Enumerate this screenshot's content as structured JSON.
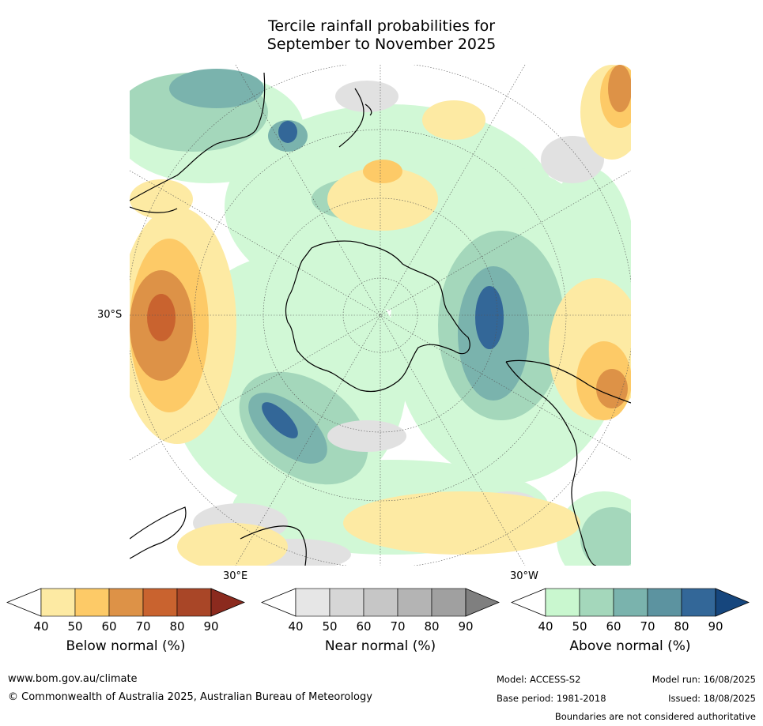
{
  "title": {
    "line1": "Tercile rainfall probabilities for",
    "line2": "September to November 2025"
  },
  "map": {
    "projection": "south-polar-stereographic",
    "labels": {
      "lat_30s": "30°S",
      "lon_30e": "30°E",
      "lon_30w": "30°W"
    }
  },
  "colorbars": [
    {
      "label": "Below normal (%)",
      "ticks": [
        "40",
        "50",
        "60",
        "70",
        "80",
        "90"
      ],
      "colors": [
        "#ffffff",
        "#fdeaa3",
        "#fdca67",
        "#dd9247",
        "#c9632f",
        "#a94627",
        "#8b2a1e"
      ]
    },
    {
      "label": "Near normal (%)",
      "ticks": [
        "40",
        "50",
        "60",
        "70",
        "80",
        "90"
      ],
      "colors": [
        "#ffffff",
        "#e6e6e6",
        "#d6d6d6",
        "#c6c6c6",
        "#b4b4b4",
        "#a0a0a0",
        "#7f7f7f"
      ]
    },
    {
      "label": "Above normal (%)",
      "ticks": [
        "40",
        "50",
        "60",
        "70",
        "80",
        "90"
      ],
      "colors": [
        "#ffffff",
        "#c9f7cf",
        "#a4d7bb",
        "#7ab3ad",
        "#5c93a0",
        "#336798",
        "#16467d"
      ]
    }
  ],
  "footer": {
    "url": "www.bom.gov.au/climate",
    "copyright": "© Commonwealth of Australia 2025, Australian Bureau of Meteorology",
    "model": "Model: ACCESS-S2",
    "base_period": "Base period: 1981-2018",
    "model_run": "Model run: 16/08/2025",
    "issued": "Issued: 18/08/2025",
    "disclaimer": "Boundaries are not considered authoritative"
  }
}
